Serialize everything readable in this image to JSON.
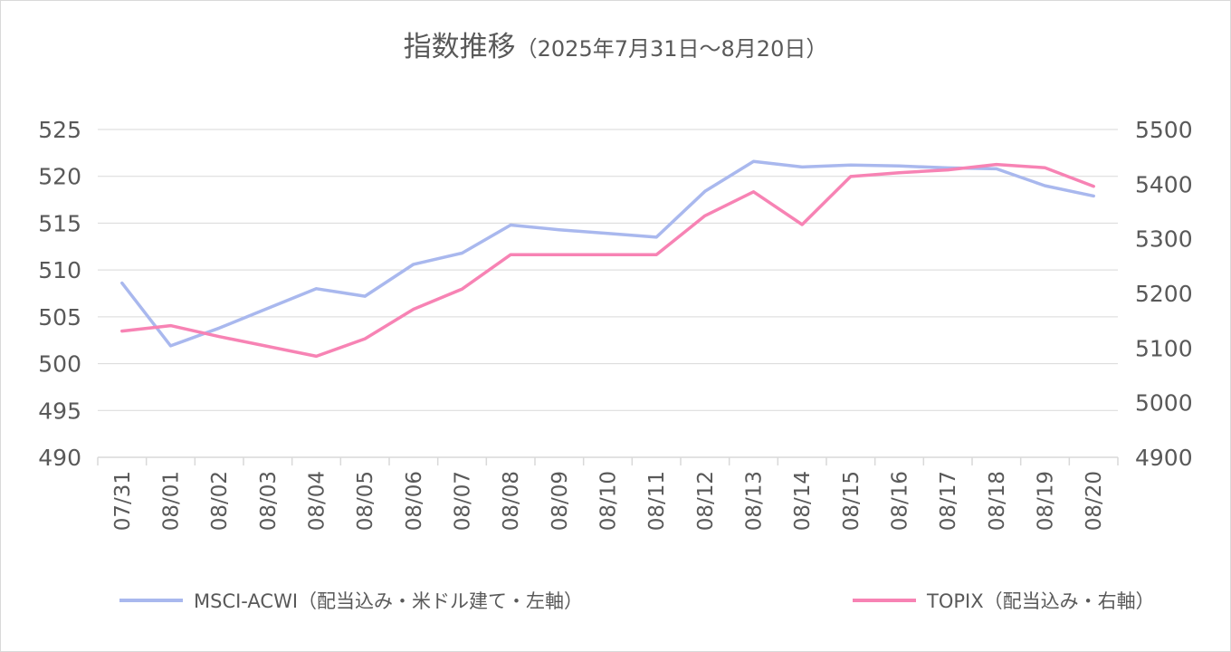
{
  "title": "指数推移",
  "subtitle": "（2025年7月31日〜8月20日）",
  "colors": {
    "msci": "#a9b8ee",
    "topix": "#f783b4",
    "grid": "#d9d9d9",
    "text": "#595959"
  },
  "chart_data": {
    "type": "line",
    "categories": [
      "07/31",
      "08/01",
      "08/02",
      "08/03",
      "08/04",
      "08/05",
      "08/06",
      "08/07",
      "08/08",
      "08/09",
      "08/10",
      "08/11",
      "08/12",
      "08/13",
      "08/14",
      "08/15",
      "08/16",
      "08/17",
      "08/18",
      "08/19",
      "08/20"
    ],
    "y_left": {
      "min": 490,
      "max": 525,
      "step": 5,
      "ticks": [
        "490",
        "495",
        "500",
        "505",
        "510",
        "515",
        "520",
        "525"
      ]
    },
    "y_right": {
      "min": 4900,
      "max": 5500,
      "step": 100,
      "ticks": [
        "4900",
        "5000",
        "5100",
        "5200",
        "5300",
        "5400",
        "5500"
      ]
    },
    "grid": true,
    "legend_position": "bottom",
    "series": [
      {
        "name": "MSCI-ACWI（配当込み・米ドル建て・左軸）",
        "axis": "left",
        "color": "#a9b8ee",
        "values": [
          508.6,
          501.9,
          503.8,
          505.9,
          508.0,
          507.2,
          510.6,
          511.8,
          514.8,
          514.3,
          513.9,
          513.5,
          518.4,
          521.6,
          521.0,
          521.2,
          521.1,
          520.9,
          520.8,
          519.0,
          517.9
        ]
      },
      {
        "name": "TOPIX（配当込み・右軸）",
        "axis": "right",
        "color": "#f783b4",
        "values": [
          5131,
          5141,
          5121,
          5103,
          5085,
          5117,
          5171,
          5208,
          5271,
          5271,
          5271,
          5271,
          5342,
          5386,
          5326,
          5414,
          5421,
          5426,
          5436,
          5430,
          5396
        ]
      }
    ]
  }
}
